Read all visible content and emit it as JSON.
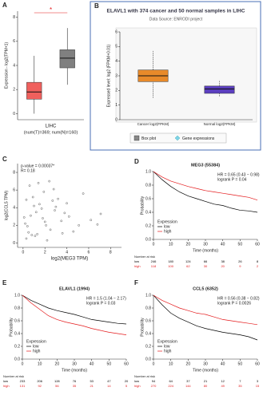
{
  "chart_data": [
    {
      "type": "box",
      "label": "A",
      "ylabel": "Expression - log2(TPM+1)",
      "xlabel": "LIHC",
      "note": "(num(T)=369; num(N)=160)",
      "annotation": "*",
      "ylim": [
        -0.5,
        8.5
      ],
      "yticks": [
        0,
        2,
        4,
        6,
        8
      ],
      "boxes": [
        {
          "color": "#f0605d",
          "min": 0,
          "q1": 1.2,
          "median": 1.8,
          "q3": 2.6,
          "max": 4.8
        },
        {
          "color": "#808080",
          "min": 2.4,
          "q1": 3.8,
          "median": 4.6,
          "q3": 5.3,
          "max": 7.1
        }
      ]
    },
    {
      "type": "box",
      "label": "B",
      "title": "ELAVL1 with 374 cancer and 50 normal samples in LIHC",
      "subtitle": "Data Source: ENRODI project",
      "ylabel": "Expressed level: log2 (FPKM+0.01)",
      "categories": [
        "Cancer log2(FPKM)",
        "Normal log2(FPKM)"
      ],
      "legend": [
        "Box plot",
        "Gene expressions"
      ],
      "ylim": [
        0,
        6
      ],
      "yticks": [
        0,
        1,
        2,
        3,
        4,
        5,
        6
      ],
      "boxes": [
        {
          "color": "#e88a2a",
          "min": 1.5,
          "q1": 2.6,
          "median": 3,
          "q3": 3.4,
          "max": 4.7
        },
        {
          "color": "#5b3fbf",
          "min": 1.6,
          "q1": 1.8,
          "median": 2.1,
          "q3": 2.3,
          "max": 2.7
        }
      ]
    },
    {
      "type": "scatter",
      "label": "C",
      "annotations": [
        "p-value = 0.00037*",
        "R= 0.18"
      ],
      "xlabel": "log2(MEG3 TPM)",
      "ylabel": "log2(CCL5 TPM)",
      "xlim": [
        -0.5,
        9
      ],
      "xticks": [
        0,
        2,
        4,
        6,
        8
      ],
      "ylim": [
        -0.5,
        9
      ],
      "yticks": [
        0,
        2,
        4,
        6,
        8
      ],
      "color": "#333333",
      "x": [
        0.5,
        1.2,
        2.1,
        0.3,
        3.0,
        1.8,
        2.5,
        0.9,
        4.2,
        1.1,
        0.2,
        2.8,
        3.5,
        1.5,
        0.7,
        5.1,
        2.2,
        1.9,
        0.4,
        3.8,
        6.2,
        1.3,
        2.7,
        0.6,
        4.6,
        1.7,
        3.2,
        0.1,
        2.4,
        7.1,
        1.0,
        5.5,
        2.0,
        3.6,
        0.8,
        1.4,
        4.0,
        2.9,
        6.8,
        0.3
      ],
      "y": [
        1.2,
        3.5,
        2.0,
        0.5,
        4.1,
        2.8,
        1.5,
        5.2,
        3.0,
        0.8,
        2.2,
        6.1,
        2.5,
        4.4,
        3.1,
        2.0,
        0.3,
        5.8,
        1.9,
        3.4,
        2.6,
        1.0,
        4.8,
        6.5,
        1.3,
        3.9,
        5.0,
        2.9,
        7.0,
        3.3,
        4.2,
        5.6,
        2.4,
        1.1,
        0.9,
        6.8,
        4.5,
        3.7,
        2.1,
        4.9
      ]
    },
    {
      "type": "survival",
      "label": "D",
      "title": "MEG3 (55384)",
      "hr": "HR = 0.65 (0.43 − 0.98)",
      "p": "logrank P = 0.04",
      "ylabel": "Probability",
      "xlabel": "Time (months)",
      "legend_title": "Expression",
      "risk_title": "Number at risk",
      "xlim": [
        0,
        60
      ],
      "xticks": [
        0,
        10,
        20,
        30,
        40,
        50,
        60
      ],
      "ylim": [
        0,
        1
      ],
      "yticks": [
        {
          "value": 0,
          "label": "0.0"
        },
        0.2,
        0.4,
        0.6,
        0.8,
        {
          "value": 1,
          "label": "1.0"
        }
      ],
      "x": [
        0,
        5,
        10,
        15,
        20,
        25,
        30,
        35,
        40,
        45,
        50,
        55,
        60
      ],
      "series": [
        {
          "name": "low",
          "color": "#000000",
          "values": [
            1,
            0.88,
            0.78,
            0.7,
            0.64,
            0.6,
            0.56,
            0.52,
            0.5,
            0.46,
            0.43,
            0.42,
            0.4
          ],
          "risk": [
            246,
            180,
            124,
            66,
            38,
            26,
            8
          ]
        },
        {
          "name": "high",
          "color": "#e41a1c",
          "values": [
            1,
            0.92,
            0.86,
            0.82,
            0.78,
            0.75,
            0.72,
            0.7,
            0.68,
            0.66,
            0.64,
            0.62,
            0.58
          ],
          "risk": [
            118,
            100,
            62,
            30,
            20,
            9,
            2
          ]
        }
      ]
    },
    {
      "type": "survival",
      "label": "E",
      "title": "ELAVL1 (1994)",
      "hr": "HR = 1.5 (1.04 − 2.17)",
      "p": "logrank P = 0.03",
      "ylabel": "Probability",
      "xlabel": "Time (months)",
      "legend_title": "Expression",
      "risk_title": "Number at risk",
      "xlim": [
        0,
        60
      ],
      "xticks": [
        0,
        10,
        20,
        30,
        40,
        50,
        60
      ],
      "ylim": [
        0,
        1
      ],
      "yticks": [
        {
          "value": 0,
          "label": "0.0"
        },
        0.2,
        0.4,
        0.6,
        0.8,
        {
          "value": 1,
          "label": "1.0"
        }
      ],
      "x": [
        0,
        5,
        10,
        15,
        20,
        25,
        30,
        35,
        40,
        45,
        50,
        55,
        60
      ],
      "series": [
        {
          "name": "low",
          "color": "#000000",
          "values": [
            1,
            0.92,
            0.86,
            0.8,
            0.76,
            0.73,
            0.7,
            0.66,
            0.62,
            0.6,
            0.58,
            0.56,
            0.55
          ],
          "risk": [
            233,
            206,
            128,
            76,
            53,
            47,
            20
          ]
        },
        {
          "name": "high",
          "color": "#e41a1c",
          "values": [
            1,
            0.88,
            0.78,
            0.68,
            0.62,
            0.58,
            0.55,
            0.52,
            0.48,
            0.45,
            0.42,
            0.4,
            0.38
          ],
          "risk": [
            131,
            92,
            56,
            35,
            21,
            14,
            5
          ]
        }
      ]
    },
    {
      "type": "survival",
      "label": "F",
      "title": "CCL5 (6352)",
      "hr": "HR = 0.56 (0.38 − 0.82)",
      "p": "logrank P = 0.0026",
      "ylabel": "Probability",
      "xlabel": "Time (months)",
      "legend_title": "Expression",
      "risk_title": "Number at risk",
      "xlim": [
        0,
        60
      ],
      "xticks": [
        0,
        10,
        20,
        30,
        40,
        50,
        60
      ],
      "ylim": [
        0,
        1
      ],
      "yticks": [
        {
          "value": 0,
          "label": "0.0"
        },
        0.2,
        0.4,
        0.6,
        0.8,
        {
          "value": 1,
          "label": "1.0"
        }
      ],
      "x": [
        0,
        5,
        10,
        15,
        20,
        25,
        30,
        35,
        40,
        45,
        50,
        55,
        60
      ],
      "series": [
        {
          "name": "low",
          "color": "#000000",
          "values": [
            1,
            0.85,
            0.72,
            0.64,
            0.58,
            0.52,
            0.48,
            0.45,
            0.42,
            0.4,
            0.38,
            0.35,
            0.3
          ],
          "risk": [
            94,
            64,
            37,
            21,
            12,
            7,
            3
          ]
        },
        {
          "name": "high",
          "color": "#e41a1c",
          "values": [
            1,
            0.92,
            0.86,
            0.8,
            0.76,
            0.72,
            0.7,
            0.66,
            0.62,
            0.6,
            0.58,
            0.56,
            0.54
          ],
          "risk": [
            270,
            224,
            144,
            80,
            49,
            35,
            15
          ]
        }
      ]
    }
  ]
}
